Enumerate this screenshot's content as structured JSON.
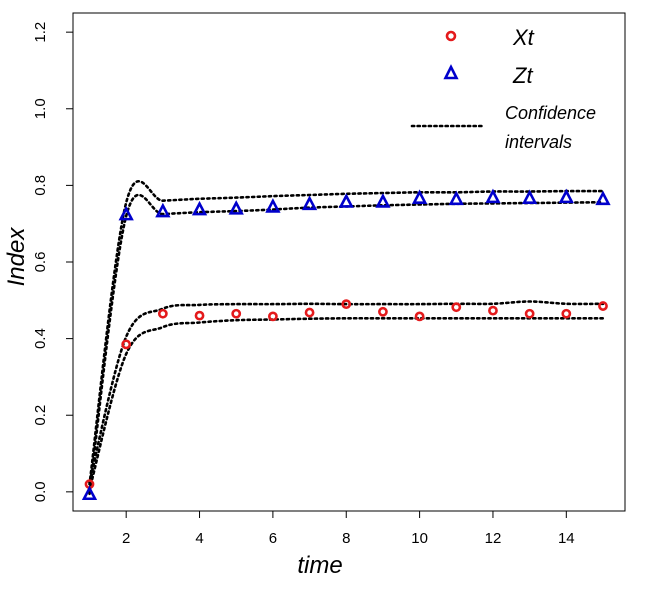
{
  "chart_data": {
    "type": "scatter",
    "xlabel": "time",
    "ylabel": "Index",
    "xlim": [
      0.55,
      15.6
    ],
    "ylim": [
      -0.05,
      1.25
    ],
    "xticks": [
      2,
      4,
      6,
      8,
      10,
      12,
      14
    ],
    "yticks": [
      0.0,
      0.2,
      0.4,
      0.6,
      0.8,
      1.0,
      1.2
    ],
    "ytick_labels": [
      "0.0",
      "0.2",
      "0.4",
      "0.6",
      "0.8",
      "1.0",
      "1.2"
    ],
    "series": [
      {
        "name": "Xt",
        "marker": "circle",
        "color": "#e41a1c",
        "x": [
          1,
          2,
          3,
          4,
          5,
          6,
          7,
          8,
          9,
          10,
          11,
          12,
          13,
          14,
          15
        ],
        "values": [
          0.02,
          0.385,
          0.465,
          0.46,
          0.465,
          0.458,
          0.468,
          0.49,
          0.47,
          0.458,
          0.482,
          0.473,
          0.465,
          0.465,
          0.485
        ],
        "ci_upper": [
          0.025,
          0.405,
          0.478,
          0.488,
          0.49,
          0.49,
          0.491,
          0.49,
          0.49,
          0.49,
          0.491,
          0.491,
          0.497,
          0.491,
          0.491
        ],
        "ci_lower": [
          0.005,
          0.36,
          0.43,
          0.442,
          0.448,
          0.45,
          0.452,
          0.453,
          0.453,
          0.453,
          0.453,
          0.453,
          0.453,
          0.453,
          0.453
        ]
      },
      {
        "name": "Zt",
        "marker": "triangle",
        "color": "#0000cc",
        "x": [
          1,
          2,
          3,
          4,
          5,
          6,
          7,
          8,
          9,
          10,
          11,
          12,
          13,
          14,
          15
        ],
        "values": [
          -0.005,
          0.725,
          0.733,
          0.738,
          0.74,
          0.745,
          0.752,
          0.758,
          0.758,
          0.768,
          0.765,
          0.77,
          0.768,
          0.77,
          0.765
        ],
        "ci_upper": [
          0.02,
          0.755,
          0.76,
          0.765,
          0.768,
          0.772,
          0.775,
          0.778,
          0.78,
          0.782,
          0.782,
          0.784,
          0.784,
          0.785,
          0.785
        ],
        "ci_lower": [
          -0.005,
          0.72,
          0.725,
          0.73,
          0.733,
          0.737,
          0.742,
          0.745,
          0.748,
          0.75,
          0.752,
          0.753,
          0.754,
          0.755,
          0.756
        ]
      }
    ],
    "legend": {
      "position": "top-right",
      "entries": [
        {
          "label": "Xt",
          "marker": "circle",
          "color": "#e41a1c"
        },
        {
          "label": "Zt",
          "marker": "triangle",
          "color": "#0000cc"
        },
        {
          "label_lines": [
            "Confidence",
            "intervals"
          ],
          "marker": "dotted-line",
          "color": "#000000"
        }
      ]
    }
  }
}
